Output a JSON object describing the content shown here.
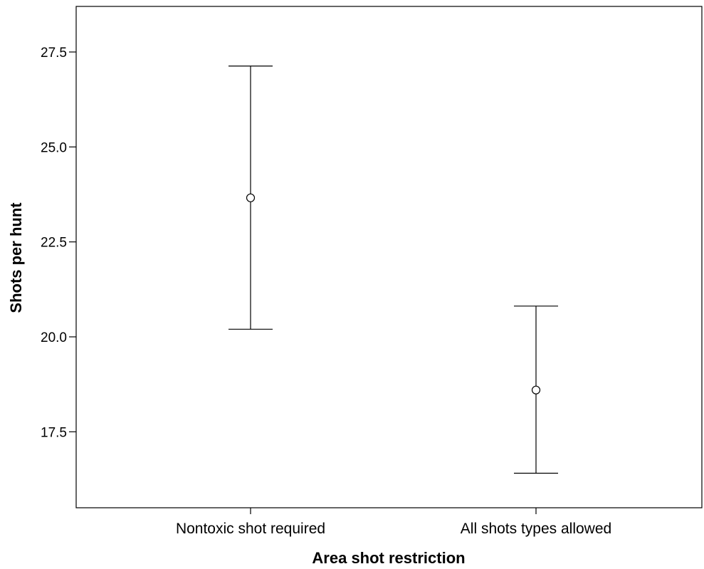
{
  "chart_data": {
    "type": "errorbar",
    "xlabel": "Area shot restriction",
    "ylabel": "Shots per hunt",
    "ylim": [
      15.5,
      28.7
    ],
    "yticks": [
      "17.5",
      "20.0",
      "22.5",
      "25.0",
      "27.5"
    ],
    "grid": false,
    "categories": [
      "Nontoxic shot required",
      "All shots types allowed"
    ],
    "means": [
      23.66,
      18.6
    ],
    "lower": [
      20.2,
      16.41
    ],
    "upper": [
      27.13,
      20.81
    ]
  }
}
